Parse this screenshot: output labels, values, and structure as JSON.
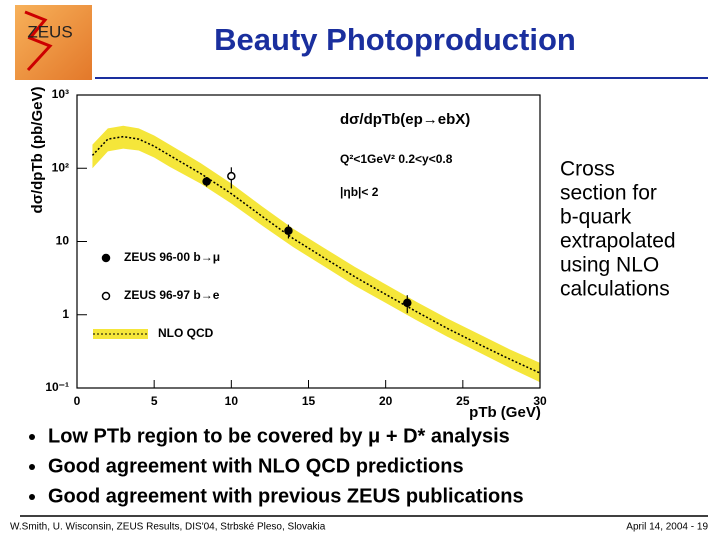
{
  "logo": "ZEUS",
  "title": "Beauty Photoproduction",
  "side_text": [
    "Cross",
    "section for",
    "b-quark",
    "extrapolated",
    "using NLO",
    "calculations"
  ],
  "bullets": [
    "Low PTb region to be covered by μ + D* analysis",
    "Good agreement with NLO QCD predictions",
    "Good agreement with previous ZEUS publications"
  ],
  "footer": {
    "left": "W.Smith, U. Wisconsin, ZEUS Results, DIS'04, Strbské Pleso, Slovakia",
    "right": "April 14, 2004 - 19"
  },
  "chart_data": {
    "type": "line",
    "ylabel": "dσ/dpTb (pb/GeV)",
    "xlabel": "pTb (GeV)",
    "annotations": [
      "dσ/dpTb(ep→ebX)",
      "Q²<1GeV²  0.2<y<0.8",
      "|ηb|< 2"
    ],
    "xlim": [
      0,
      30
    ],
    "xticks": [
      0,
      5,
      10,
      15,
      20,
      25,
      30
    ],
    "ylim": [
      0.1,
      1000
    ],
    "ylog": true,
    "yticks": [
      {
        "value": 1000,
        "label": "10³"
      },
      {
        "value": 100,
        "label": "10²"
      },
      10,
      1,
      {
        "value": 0.1,
        "label": "10⁻¹"
      }
    ],
    "series": [
      {
        "name": "ZEUS 96-00 b→μ",
        "style": "filled",
        "color": "#000000",
        "x": [
          8.4,
          13.7,
          21.4
        ],
        "values": [
          66,
          14,
          1.45
        ],
        "errors": [
          10,
          3,
          0.4
        ]
      },
      {
        "name": "ZEUS 96-97 b→e",
        "style": "open",
        "color": "#000000",
        "x": [
          10
        ],
        "values": [
          78
        ],
        "errors": [
          25
        ]
      },
      {
        "name": "NLO QCD",
        "style": "band",
        "color": "#000000",
        "band_color": "#f5e63a",
        "x": [
          1,
          2,
          3,
          4,
          5,
          6,
          8,
          10,
          12,
          14,
          16,
          18,
          20,
          22,
          24,
          26,
          28,
          30
        ],
        "values": [
          150,
          250,
          270,
          250,
          200,
          150,
          85,
          45,
          22,
          11,
          6,
          3.3,
          1.9,
          1.1,
          0.65,
          0.4,
          0.25,
          0.16
        ],
        "lower": [
          100,
          170,
          185,
          175,
          140,
          105,
          62,
          33,
          16.5,
          8.4,
          4.6,
          2.5,
          1.45,
          0.84,
          0.5,
          0.31,
          0.19,
          0.12
        ],
        "upper": [
          210,
          350,
          380,
          350,
          280,
          210,
          118,
          62,
          30,
          15,
          8.2,
          4.5,
          2.6,
          1.5,
          0.89,
          0.55,
          0.34,
          0.22
        ]
      }
    ]
  }
}
